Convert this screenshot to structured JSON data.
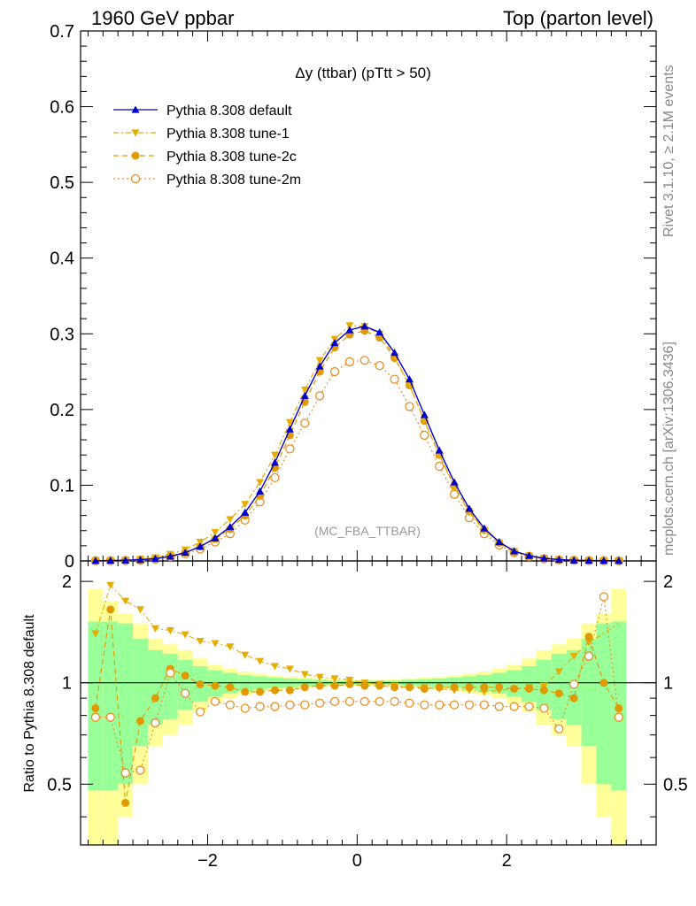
{
  "header": {
    "left": "1960 GeV ppbar",
    "right": "Top (parton level)"
  },
  "side_text": {
    "rivet": "Rivet 3.1.10, ≥ 2.1M events",
    "mcplots": "mcplots.cern.ch [arXiv:1306.3436]"
  },
  "colors": {
    "default": "#0000cc",
    "tune1": "#e6ad00",
    "tune2c": "#e09900",
    "tune2m": "#e6902a",
    "band_inner": "#99ff99",
    "band_outer": "#ffff99"
  },
  "chart_data": [
    {
      "type": "line",
      "title": "Δy (ttbar) (pTtt > 50)",
      "watermark": "(MC_FBA_TTBAR)",
      "xlabel": "",
      "ylabel": "",
      "xlim": [
        -3.7,
        4.0
      ],
      "ylim": [
        0,
        0.7
      ],
      "yticks": [
        "0",
        "0.1",
        "0.2",
        "0.3",
        "0.4",
        "0.5",
        "0.6",
        "0.7"
      ],
      "legend_position": "top-left",
      "x": [
        -3.5,
        -3.3,
        -3.1,
        -2.9,
        -2.7,
        -2.5,
        -2.3,
        -2.1,
        -1.9,
        -1.7,
        -1.5,
        -1.3,
        -1.1,
        -0.9,
        -0.7,
        -0.5,
        -0.3,
        -0.1,
        0.1,
        0.3,
        0.5,
        0.7,
        0.9,
        1.1,
        1.3,
        1.5,
        1.7,
        1.9,
        2.1,
        2.3,
        2.5,
        2.7,
        2.9,
        3.1,
        3.3,
        3.5
      ],
      "series": [
        {
          "name": "Pythia 8.308 default",
          "key": "default",
          "marker": "triangle-up",
          "dash": "solid",
          "values": [
            0.0002,
            0.0005,
            0.0009,
            0.0016,
            0.003,
            0.006,
            0.011,
            0.019,
            0.03,
            0.045,
            0.064,
            0.092,
            0.13,
            0.174,
            0.218,
            0.257,
            0.288,
            0.305,
            0.31,
            0.302,
            0.275,
            0.24,
            0.193,
            0.146,
            0.104,
            0.069,
            0.043,
            0.025,
            0.013,
            0.007,
            0.0035,
            0.0017,
            0.0009,
            0.0005,
            0.0003,
            0.0002
          ]
        },
        {
          "name": "Pythia 8.308 tune-1",
          "key": "tune1",
          "marker": "triangle-down",
          "dash": "dashdot",
          "values": [
            0.0003,
            0.0008,
            0.0015,
            0.0027,
            0.0045,
            0.009,
            0.015,
            0.025,
            0.038,
            0.055,
            0.075,
            0.104,
            0.14,
            0.183,
            0.226,
            0.265,
            0.293,
            0.311,
            0.31,
            0.3,
            0.27,
            0.232,
            0.185,
            0.14,
            0.097,
            0.064,
            0.04,
            0.024,
            0.013,
            0.007,
            0.0038,
            0.002,
            0.0011,
            0.0006,
            0.0004,
            0.0002
          ]
        },
        {
          "name": "Pythia 8.308 tune-2c",
          "key": "tune2c",
          "marker": "circle",
          "dash": "dash",
          "values": [
            0.0002,
            0.0008,
            0.0006,
            0.0012,
            0.0027,
            0.0066,
            0.011,
            0.019,
            0.029,
            0.042,
            0.06,
            0.086,
            0.123,
            0.166,
            0.21,
            0.25,
            0.282,
            0.299,
            0.304,
            0.295,
            0.268,
            0.232,
            0.185,
            0.14,
            0.099,
            0.066,
            0.041,
            0.024,
            0.012,
            0.0068,
            0.0035,
            0.0018,
            0.0011,
            0.0007,
            0.0005,
            0.0002
          ]
        },
        {
          "name": "Pythia 8.308 tune-2m",
          "key": "tune2m",
          "marker": "open-circle",
          "dash": "dot",
          "values": [
            0.0002,
            0.0004,
            0.0005,
            0.0009,
            0.0023,
            0.0056,
            0.0095,
            0.0158,
            0.025,
            0.036,
            0.054,
            0.078,
            0.11,
            0.148,
            0.182,
            0.218,
            0.25,
            0.263,
            0.265,
            0.258,
            0.24,
            0.204,
            0.166,
            0.125,
            0.088,
            0.057,
            0.036,
            0.021,
            0.011,
            0.0058,
            0.0029,
            0.0013,
            0.0009,
            0.0006,
            0.0004,
            0.0002
          ]
        }
      ]
    },
    {
      "type": "line",
      "title": "",
      "xlabel": "",
      "ylabel": "Ratio to Pythia 8.308 default",
      "xlim": [
        -3.7,
        4.0
      ],
      "ylim": [
        0.33,
        2.3
      ],
      "yscale": "log",
      "xticks": [
        "−2",
        "0",
        "2"
      ],
      "yticks_left": [
        "0.5",
        "1",
        "2"
      ],
      "yticks_right": [
        "0.5",
        "1",
        "2"
      ],
      "reference_line": 1,
      "band_edges": [
        -3.6,
        -3.4,
        -3.2,
        -3.0,
        -2.8,
        -2.6,
        -2.4,
        -2.2,
        -2.0,
        -1.8,
        -1.6,
        -1.4,
        -1.2,
        -1.0,
        -0.8,
        -0.6,
        -0.4,
        -0.2,
        0.0,
        0.2,
        0.4,
        0.6,
        0.8,
        1.0,
        1.2,
        1.4,
        1.6,
        1.8,
        2.0,
        2.2,
        2.4,
        2.6,
        2.8,
        3.0,
        3.2,
        3.4,
        3.6
      ],
      "band_inner": [
        0.52,
        0.52,
        0.5,
        0.35,
        0.25,
        0.22,
        0.17,
        0.12,
        0.09,
        0.07,
        0.055,
        0.045,
        0.035,
        0.03,
        0.025,
        0.02,
        0.015,
        0.015,
        0.015,
        0.015,
        0.015,
        0.02,
        0.025,
        0.03,
        0.035,
        0.045,
        0.055,
        0.07,
        0.09,
        0.12,
        0.17,
        0.22,
        0.25,
        0.35,
        0.5,
        0.52
      ],
      "band_outer": [
        0.9,
        0.75,
        0.6,
        0.5,
        0.35,
        0.3,
        0.25,
        0.18,
        0.13,
        0.1,
        0.08,
        0.065,
        0.05,
        0.042,
        0.035,
        0.03,
        0.024,
        0.02,
        0.02,
        0.02,
        0.024,
        0.03,
        0.035,
        0.042,
        0.05,
        0.065,
        0.08,
        0.1,
        0.13,
        0.18,
        0.25,
        0.3,
        0.35,
        0.5,
        0.6,
        0.9
      ],
      "x": [
        -3.5,
        -3.3,
        -3.1,
        -2.9,
        -2.7,
        -2.5,
        -2.3,
        -2.1,
        -1.9,
        -1.7,
        -1.5,
        -1.3,
        -1.1,
        -0.9,
        -0.7,
        -0.5,
        -0.3,
        -0.1,
        0.1,
        0.3,
        0.5,
        0.7,
        0.9,
        1.1,
        1.3,
        1.5,
        1.7,
        1.9,
        2.1,
        2.3,
        2.5,
        2.7,
        2.9,
        3.1,
        3.3,
        3.5
      ],
      "series": [
        {
          "name": "Pythia 8.308 tune-1",
          "key": "tune1",
          "marker": "triangle-down",
          "dash": "dashdot",
          "values": [
            1.4,
            1.95,
            1.75,
            1.65,
            1.45,
            1.43,
            1.39,
            1.33,
            1.31,
            1.28,
            1.21,
            1.16,
            1.12,
            1.1,
            1.06,
            1.04,
            1.03,
            1.02,
            1.0,
            0.99,
            0.98,
            0.97,
            0.97,
            0.96,
            0.95,
            0.95,
            0.94,
            0.95,
            0.96,
            0.97,
            0.98,
            1.08,
            1.2,
            1.32,
            1.4,
            1.5
          ],
          "show_points": [
            0,
            1,
            2,
            3,
            4,
            5,
            6,
            7,
            8,
            9,
            10,
            11,
            12,
            13,
            14,
            15,
            16,
            17,
            18,
            19,
            20,
            21,
            22,
            23,
            24,
            25,
            26,
            27,
            28,
            29,
            30,
            31,
            32,
            33
          ]
        },
        {
          "name": "Pythia 8.308 tune-2c",
          "key": "tune2c",
          "marker": "circle",
          "dash": "dash",
          "values": [
            0.84,
            1.65,
            0.44,
            0.77,
            0.9,
            1.1,
            1.05,
            0.99,
            0.98,
            0.97,
            0.94,
            0.94,
            0.95,
            0.95,
            0.97,
            0.98,
            0.98,
            0.99,
            0.98,
            0.98,
            0.97,
            0.97,
            0.96,
            0.97,
            0.97,
            0.97,
            0.97,
            0.97,
            0.96,
            0.96,
            0.95,
            0.93,
            0.9,
            1.37,
            1.0,
            0.84
          ]
        },
        {
          "name": "Pythia 8.308 tune-2m",
          "key": "tune2m",
          "marker": "open-circle",
          "dash": "dot",
          "values": [
            0.79,
            0.79,
            0.54,
            0.55,
            0.76,
            1.07,
            0.93,
            0.82,
            0.88,
            0.86,
            0.84,
            0.85,
            0.85,
            0.86,
            0.86,
            0.87,
            0.88,
            0.88,
            0.88,
            0.88,
            0.88,
            0.87,
            0.86,
            0.86,
            0.86,
            0.86,
            0.86,
            0.85,
            0.85,
            0.85,
            0.84,
            0.73,
            0.99,
            1.2,
            1.8,
            0.79
          ]
        }
      ]
    }
  ]
}
